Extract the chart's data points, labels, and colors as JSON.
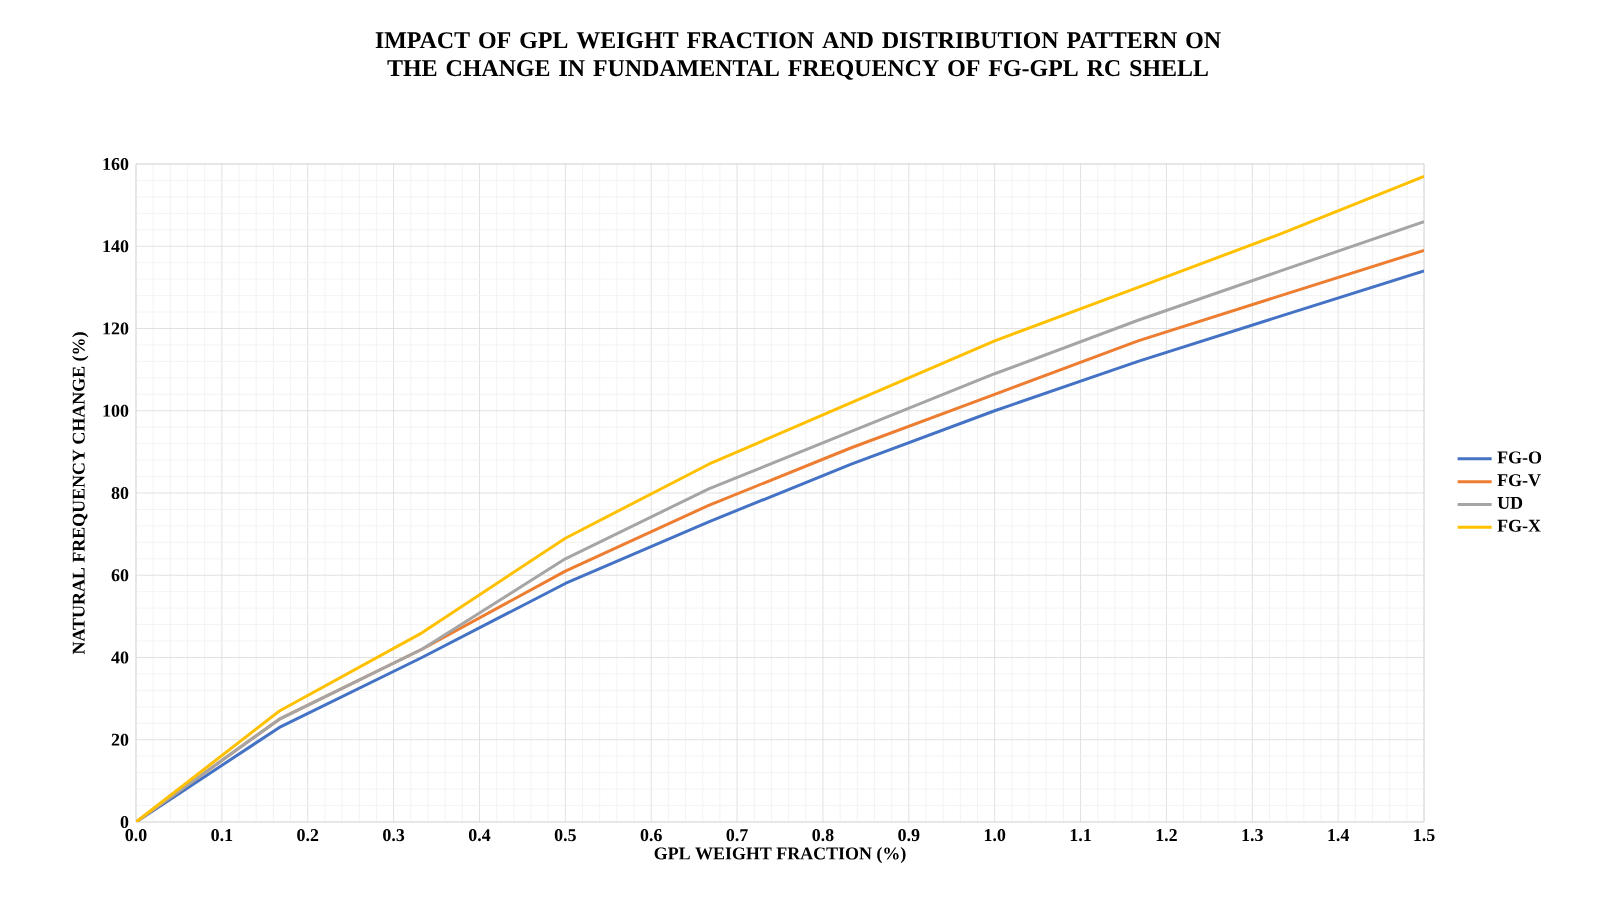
{
  "chart_data": {
    "type": "line",
    "title": "IMPACT OF GPL WEIGHT FRACTION AND DISTRIBUTION PATTERN ON THE CHANGE IN FUNDAMENTAL FREQUENCY OF FG-GPL RC SHELL",
    "xlabel": "GPL WEIGHT FRACTION (%)",
    "ylabel": "NATURAL FREQUENCY CHANGE (%)",
    "x": [
      0,
      0.167,
      0.333,
      0.5,
      0.667,
      0.833,
      1.0,
      1.167,
      1.333,
      1.5
    ],
    "series": [
      {
        "name": "FG-O",
        "color": "#4472c4",
        "values": [
          0,
          23,
          40,
          58,
          73,
          87,
          100,
          112,
          123,
          134
        ]
      },
      {
        "name": "FG-V",
        "color": "#ed7d31",
        "values": [
          0,
          25,
          42,
          61,
          77,
          91,
          104,
          117,
          128,
          139
        ]
      },
      {
        "name": "UD",
        "color": "#a5a5a5",
        "values": [
          0,
          25,
          42,
          64,
          81,
          95,
          109,
          122,
          134,
          146
        ]
      },
      {
        "name": "FG-X",
        "color": "#ffc000",
        "values": [
          0,
          27,
          46,
          69,
          87,
          102,
          117,
          130,
          143,
          157
        ]
      }
    ],
    "xlim": [
      0,
      1.5
    ],
    "xticks": [
      {
        "value": 0,
        "label": "0.0"
      },
      {
        "value": 0.1,
        "label": "0.1"
      },
      {
        "value": 0.2,
        "label": "0.2"
      },
      {
        "value": 0.3,
        "label": "0.3"
      },
      {
        "value": 0.4,
        "label": "0.4"
      },
      {
        "value": 0.5,
        "label": "0.5"
      },
      {
        "value": 0.6,
        "label": "0.6"
      },
      {
        "value": 0.7,
        "label": "0.7"
      },
      {
        "value": 0.8,
        "label": "0.8"
      },
      {
        "value": 0.9,
        "label": "0.9"
      },
      {
        "value": 1.0,
        "label": "1.0"
      },
      {
        "value": 1.1,
        "label": "1.1"
      },
      {
        "value": 1.2,
        "label": "1.2"
      },
      {
        "value": 1.3,
        "label": "1.3"
      },
      {
        "value": 1.4,
        "label": "1.4"
      },
      {
        "value": 1.5,
        "label": "1.5"
      }
    ],
    "ylim": [
      0,
      160
    ],
    "yticks": [
      0,
      20,
      40,
      60,
      80,
      100,
      120,
      140,
      160
    ],
    "grid": true,
    "legend": "right",
    "marker": "none",
    "line_style": "solid"
  }
}
